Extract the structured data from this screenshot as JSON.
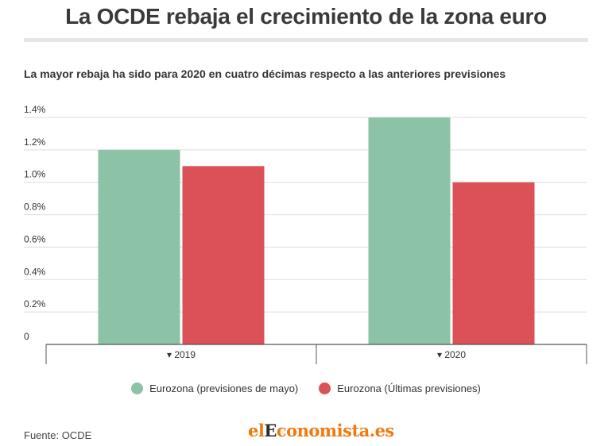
{
  "header": {
    "title": "La OCDE rebaja el crecimiento de la zona euro",
    "subtitle": "La mayor rebaja ha sido para 2020 en cuatro décimas respecto a las anteriores previsiones"
  },
  "footer": {
    "source": "Fuente: OCDE",
    "logo_text": "elEconomista.es"
  },
  "colors": {
    "series_1": "#8cc3a6",
    "series_2": "#dc5158",
    "grid": "#dddddd",
    "axis": "#555555"
  },
  "chart_data": {
    "type": "bar",
    "categories": [
      "▾ 2019",
      "▾ 2020"
    ],
    "series": [
      {
        "name": "Eurozona (previsiones de mayo)",
        "values": [
          1.2,
          1.4
        ],
        "color": "#8cc3a6"
      },
      {
        "name": "Eurozona (Últimas previsiones)",
        "values": [
          1.1,
          1.0
        ],
        "color": "#dc5158"
      }
    ],
    "ylim": [
      0,
      1.4
    ],
    "yticks": [
      0,
      0.2,
      0.4,
      0.6,
      0.8,
      1.0,
      1.2,
      1.4
    ],
    "ytick_labels": [
      "0",
      "0.2%",
      "0.4%",
      "0.6%",
      "0.8%",
      "1.0%",
      "1.2%",
      "1.4%"
    ],
    "grid": true,
    "legend_position": "bottom"
  }
}
